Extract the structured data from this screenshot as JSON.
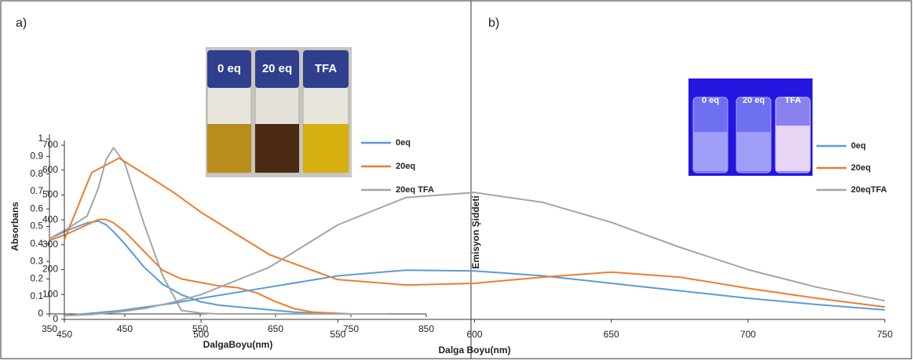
{
  "chart_data": [
    {
      "type": "line",
      "panel_label": "a)",
      "x_label": "DalgaBoyu(nm)",
      "y_label": "Absorbans",
      "photo_labels": [
        "0 eq",
        "20 eq",
        "TFA"
      ],
      "x": [
        350,
        375,
        400,
        415,
        425,
        435,
        450,
        475,
        500,
        525,
        550,
        575,
        600,
        625,
        650,
        675,
        700,
        750,
        800
      ],
      "series": [
        {
          "name": "0eq",
          "color": "#5b9bd5",
          "values": [
            0.43,
            0.48,
            0.52,
            0.53,
            0.51,
            0.47,
            0.4,
            0.27,
            0.17,
            0.11,
            0.07,
            0.05,
            0.04,
            0.03,
            0.02,
            0.01,
            0.005,
            0,
            0
          ]
        },
        {
          "name": "20eq",
          "color": "#ed7d31",
          "values": [
            0.42,
            0.46,
            0.51,
            0.54,
            0.54,
            0.52,
            0.47,
            0.36,
            0.25,
            0.2,
            0.18,
            0.16,
            0.15,
            0.12,
            0.07,
            0.03,
            0.01,
            0,
            0
          ]
        },
        {
          "name": "20eq TFA",
          "color": "#a5a5a5",
          "values": [
            0.43,
            0.49,
            0.56,
            0.72,
            0.88,
            0.95,
            0.86,
            0.52,
            0.22,
            0.02,
            0.005,
            0,
            0,
            0,
            0,
            0,
            0,
            0,
            0
          ]
        }
      ],
      "xlim": [
        350,
        850
      ],
      "ylim": [
        0,
        1
      ],
      "xticks": [
        350,
        450,
        550,
        650,
        750,
        850
      ],
      "yticks": [
        0,
        0.1,
        0.2,
        0.3,
        0.4,
        0.5,
        0.6,
        0.7,
        0.8,
        0.9,
        1
      ],
      "legend": "right"
    },
    {
      "type": "line",
      "panel_label": "b)",
      "x_label": "Dalga Boyu(nm)",
      "y_label": "Emisyon Şiddeti",
      "photo_labels": [
        "0 eq",
        "20 eq",
        "TFA"
      ],
      "x": [
        450,
        460,
        470,
        480,
        490,
        500,
        525,
        550,
        575,
        600,
        625,
        650,
        675,
        700,
        725,
        750
      ],
      "series": [
        {
          "name": "0eq",
          "color": "#5b9bd5",
          "values": [
            15,
            25,
            35,
            50,
            65,
            85,
            130,
            175,
            198,
            195,
            175,
            145,
            115,
            85,
            60,
            38
          ]
        },
        {
          "name": "20eq",
          "color": "#ed7d31",
          "values": [
            320,
            590,
            648,
            580,
            510,
            430,
            260,
            160,
            138,
            145,
            170,
            190,
            170,
            125,
            85,
            50
          ]
        },
        {
          "name": "20eqTFA",
          "color": "#a5a5a5",
          "values": [
            15,
            20,
            30,
            45,
            70,
            100,
            210,
            380,
            490,
            510,
            470,
            390,
            290,
            200,
            130,
            75
          ]
        }
      ],
      "xlim": [
        450,
        750
      ],
      "ylim": [
        0,
        700
      ],
      "xticks": [
        450,
        500,
        550,
        600,
        650,
        700,
        750
      ],
      "yticks": [
        0,
        100,
        200,
        300,
        400,
        500,
        600,
        700
      ],
      "legend": "right"
    }
  ]
}
